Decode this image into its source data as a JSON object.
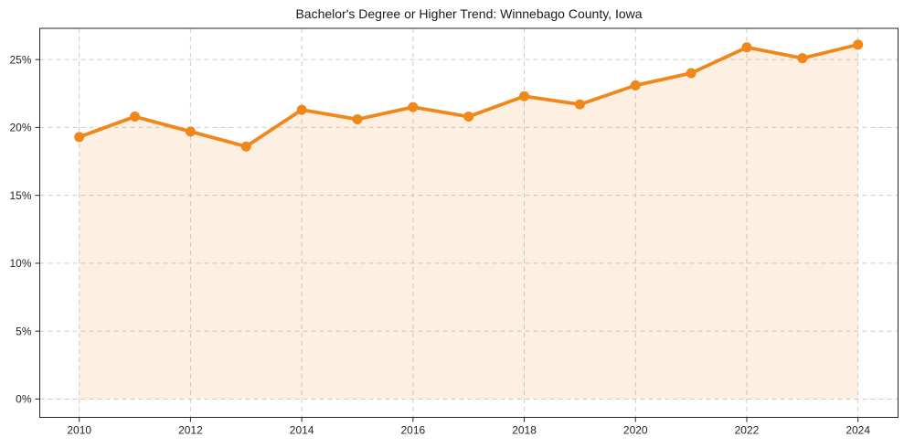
{
  "chart_data": {
    "type": "line",
    "title": "Bachelor's Degree or Higher Trend: Winnebago County, Iowa",
    "x": [
      2010,
      2011,
      2012,
      2013,
      2014,
      2015,
      2016,
      2017,
      2018,
      2019,
      2020,
      2021,
      2022,
      2023,
      2024
    ],
    "values": [
      19.3,
      20.8,
      19.7,
      18.6,
      21.3,
      20.6,
      21.5,
      20.8,
      22.3,
      21.7,
      23.1,
      24.0,
      25.9,
      25.1,
      26.1
    ],
    "xlabel": "",
    "ylabel": "",
    "xticks": [
      2010,
      2012,
      2014,
      2016,
      2018,
      2020,
      2022,
      2024
    ],
    "yticks": [
      0,
      5,
      10,
      15,
      20,
      25
    ],
    "ytick_suffix": "%",
    "xlim": [
      2009.29,
      2024.72
    ],
    "ylim": [
      -1.35,
      27.3
    ],
    "area_baseline": 0,
    "grid": "dashed",
    "legend": "none",
    "line_color": "#f0871a",
    "fill_opacity": 0.12,
    "grid_color": "#cccccc",
    "axis_color": "#262626",
    "marker": "circle"
  }
}
